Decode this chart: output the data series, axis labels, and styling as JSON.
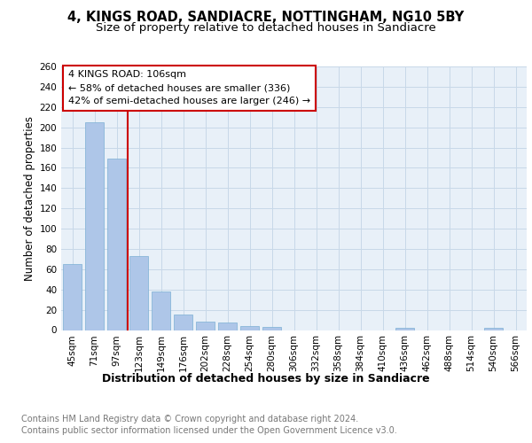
{
  "title": "4, KINGS ROAD, SANDIACRE, NOTTINGHAM, NG10 5BY",
  "subtitle": "Size of property relative to detached houses in Sandiacre",
  "xlabel": "Distribution of detached houses by size in Sandiacre",
  "ylabel": "Number of detached properties",
  "categories": [
    "45sqm",
    "71sqm",
    "97sqm",
    "123sqm",
    "149sqm",
    "176sqm",
    "202sqm",
    "228sqm",
    "254sqm",
    "280sqm",
    "306sqm",
    "332sqm",
    "358sqm",
    "384sqm",
    "410sqm",
    "436sqm",
    "462sqm",
    "488sqm",
    "514sqm",
    "540sqm",
    "566sqm"
  ],
  "values": [
    65,
    205,
    169,
    73,
    38,
    15,
    8,
    7,
    4,
    3,
    0,
    0,
    0,
    0,
    0,
    2,
    0,
    0,
    0,
    2,
    0
  ],
  "bar_color": "#aec6e8",
  "bar_edge_color": "#7bafd4",
  "vline_x": 2.5,
  "vline_color": "#cc0000",
  "annotation_title": "4 KINGS ROAD: 106sqm",
  "annotation_line1": "← 58% of detached houses are smaller (336)",
  "annotation_line2": "42% of semi-detached houses are larger (246) →",
  "annotation_box_color": "#cc0000",
  "ylim": [
    0,
    260
  ],
  "yticks": [
    0,
    20,
    40,
    60,
    80,
    100,
    120,
    140,
    160,
    180,
    200,
    220,
    240,
    260
  ],
  "grid_color": "#c8d8e8",
  "background_color": "#e8f0f8",
  "footer_line1": "Contains HM Land Registry data © Crown copyright and database right 2024.",
  "footer_line2": "Contains public sector information licensed under the Open Government Licence v3.0.",
  "title_fontsize": 10.5,
  "subtitle_fontsize": 9.5,
  "xlabel_fontsize": 9,
  "ylabel_fontsize": 8.5,
  "tick_fontsize": 7.5,
  "footer_fontsize": 7,
  "ann_fontsize": 8
}
